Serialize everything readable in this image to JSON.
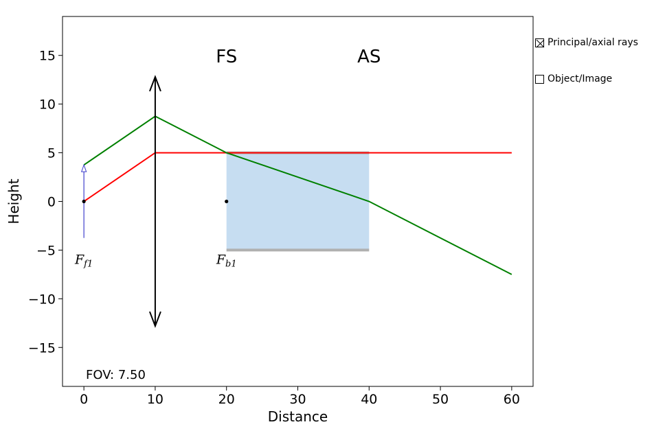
{
  "chart_data": {
    "type": "line",
    "xlabel": "Distance",
    "ylabel": "Height",
    "xlim": [
      -3,
      63
    ],
    "ylim": [
      -19,
      19
    ],
    "xticks": [
      0,
      10,
      20,
      30,
      40,
      50,
      60
    ],
    "yticks": [
      15,
      10,
      5,
      0,
      -5,
      -10,
      -15
    ],
    "series": [
      {
        "color": "#ff0000",
        "x": [
          0,
          10,
          60
        ],
        "y": [
          0,
          5,
          5
        ]
      },
      {
        "color": "#008000",
        "x": [
          0,
          10,
          20,
          40,
          60
        ],
        "y": [
          3.75,
          8.75,
          5,
          0,
          -7.5
        ]
      }
    ],
    "lens": {
      "x": 10,
      "half_height": 12.8,
      "color": "#000000"
    },
    "object_arrow": {
      "x": 0,
      "y_top": 3.75,
      "y_bottom": -3.75,
      "color": "#4040cc"
    },
    "stop_region": {
      "x_start": 20,
      "x_end": 40,
      "y_top": 5,
      "y_bottom": -5,
      "fill": "#c6ddf1",
      "edge": "#b0b0b0"
    },
    "focal_points": [
      {
        "x": 0,
        "y": 0,
        "label": "F",
        "sub": "f1"
      },
      {
        "x": 20,
        "y": 0,
        "label": "F",
        "sub": "b1"
      }
    ],
    "region_labels": [
      {
        "text": "FS",
        "x": 20,
        "y": 14.5
      },
      {
        "text": "AS",
        "x": 40,
        "y": 14.5
      }
    ],
    "fov_text": "FOV: 7.50",
    "legend": "top-right"
  },
  "controls": {
    "principal_rays": {
      "label": "Principal/axial rays",
      "checked": true
    },
    "object_image": {
      "label": "Object/Image",
      "checked": false
    }
  }
}
